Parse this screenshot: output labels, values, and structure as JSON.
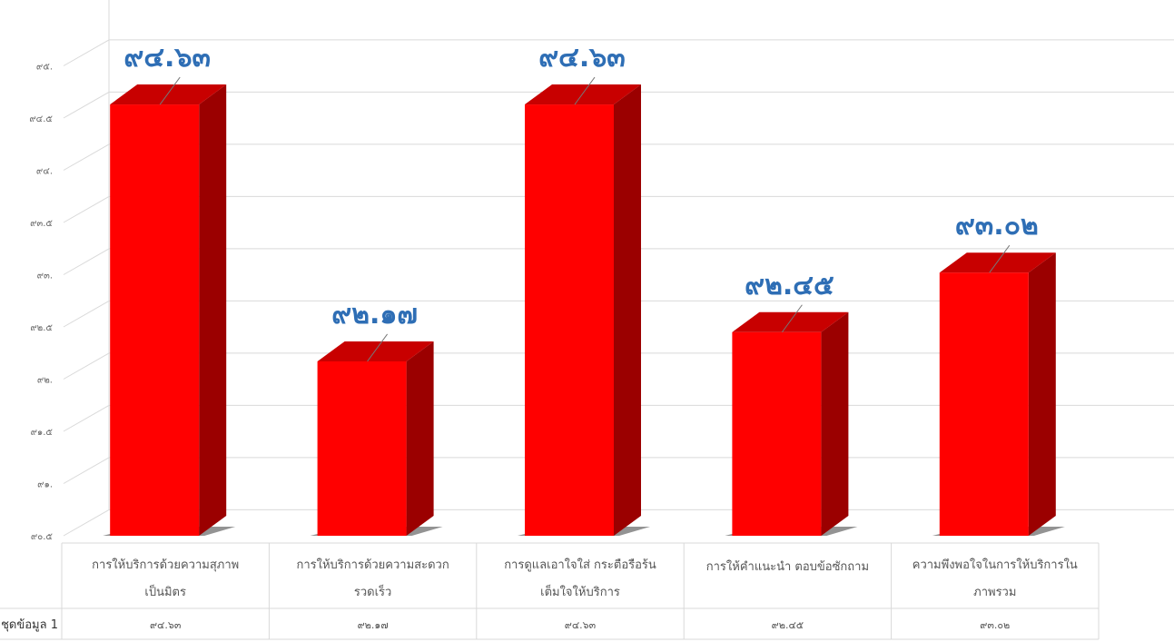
{
  "colors": {
    "bar_front": "#ff0000",
    "bar_side": "#9b0000",
    "bar_top": "#c80000",
    "value_label": "#2e6eb5",
    "grid": "#d9d9d9"
  },
  "chart_data": {
    "type": "bar",
    "style": "3d-column",
    "title": "",
    "xlabel": "",
    "ylabel": "",
    "ylim": [
      90.5,
      95.5
    ],
    "grid": true,
    "legend": "none",
    "y_ticks": [
      {
        "value": 90.5,
        "label": "๙๐.๕"
      },
      {
        "value": 91.0,
        "label": "๙๑."
      },
      {
        "value": 91.5,
        "label": "๙๑.๕"
      },
      {
        "value": 92.0,
        "label": "๙๒."
      },
      {
        "value": 92.5,
        "label": "๙๒.๕"
      },
      {
        "value": 93.0,
        "label": "๙๓."
      },
      {
        "value": 93.5,
        "label": "๙๓.๕"
      },
      {
        "value": 94.0,
        "label": "๙๔."
      },
      {
        "value": 94.5,
        "label": "๙๔.๕"
      },
      {
        "value": 95.0,
        "label": "๙๕."
      }
    ],
    "categories": [
      [
        "การให้บริการด้วยความสุภาพ",
        "เป็นมิตร"
      ],
      [
        "การให้บริการด้วยความสะดวก",
        "รวดเร็ว"
      ],
      [
        "การดูแลเอาใจใส่ กระตือรือร้น",
        "เต็มใจให้บริการ"
      ],
      [
        "การให้คำแนะนำ ตอบข้อซักถาม"
      ],
      [
        "ความพึงพอใจในการให้บริการใน",
        "ภาพรวม"
      ]
    ],
    "series": [
      {
        "name": "ชุดข้อมูล 1",
        "values": [
          94.63,
          92.17,
          94.63,
          92.45,
          93.02
        ],
        "data_labels": [
          "๙๔.๖๓",
          "๙๒.๑๗",
          "๙๔.๖๓",
          "๙๒.๔๕",
          "๙๓.๐๒"
        ],
        "table_values": [
          "๙๔.๖๓",
          "๙๒.๑๗",
          "๙๔.๖๓",
          "๙๒.๔๕",
          "๙๓.๐๒"
        ]
      }
    ]
  }
}
